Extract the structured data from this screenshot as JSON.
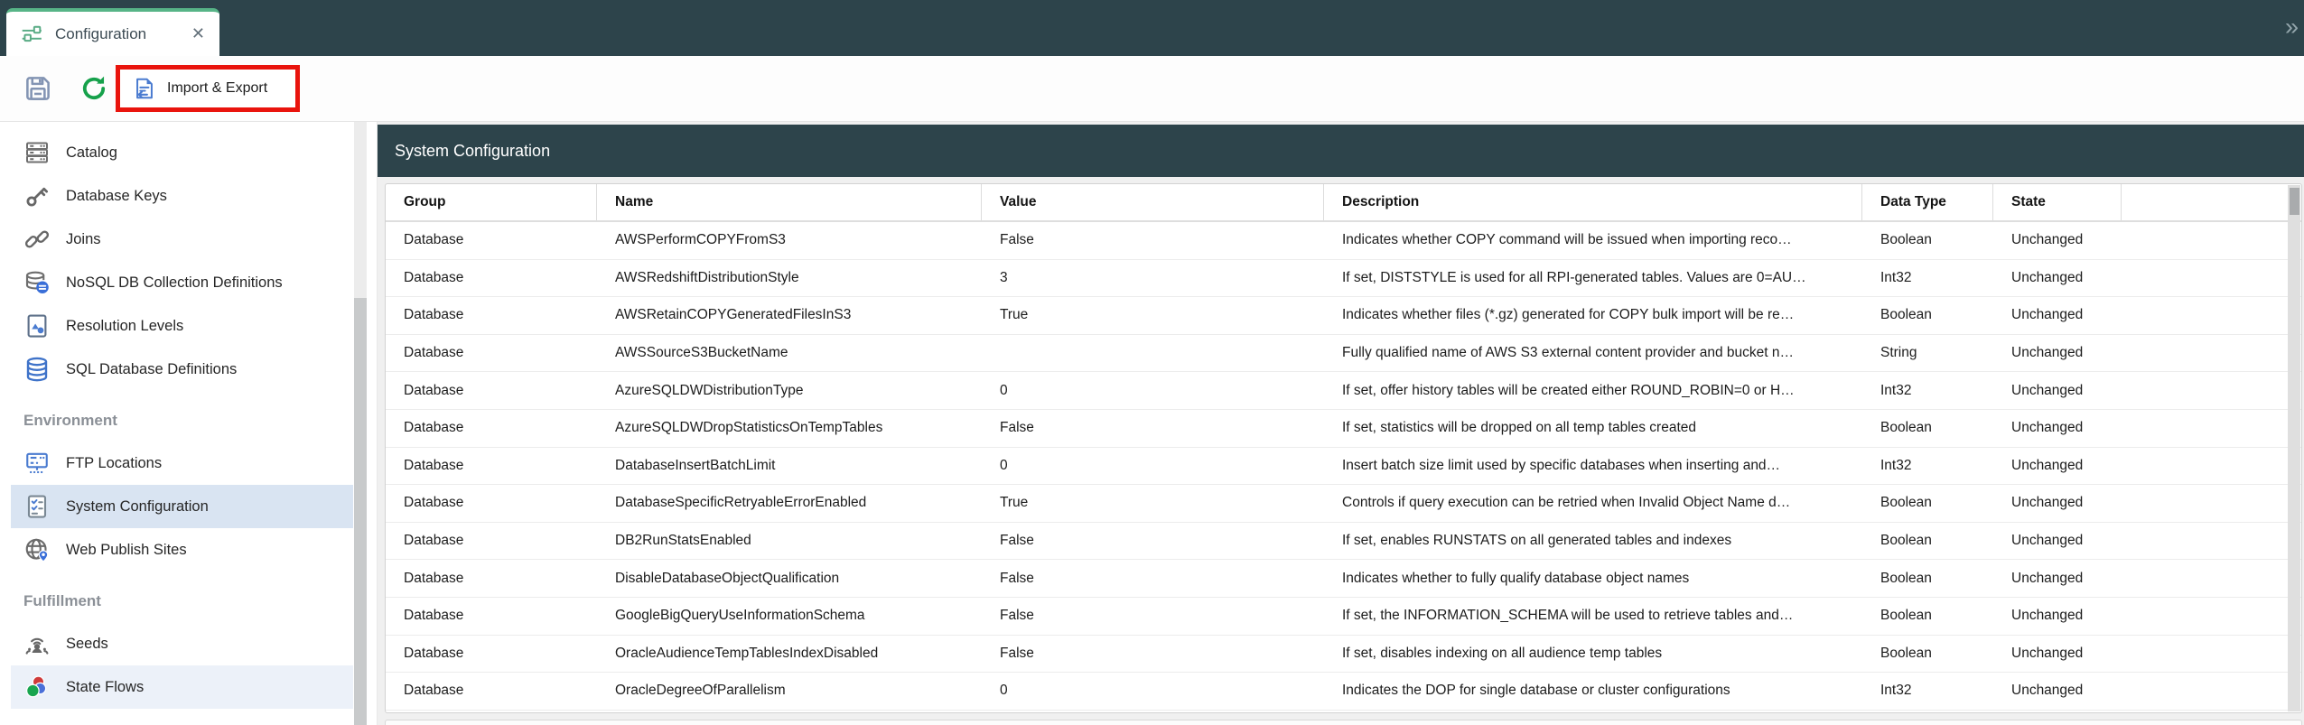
{
  "tab_bar": {
    "tab": {
      "icon": "sliders-icon",
      "label": "Configuration",
      "close_glyph": "✕"
    },
    "overflow_glyph": "»"
  },
  "toolbar": {
    "import_export": {
      "icon": "import-export-icon",
      "label": "Import & Export"
    }
  },
  "sidebar": {
    "sections": [
      {
        "header": null,
        "items": [
          {
            "label": "Catalog",
            "icon": "catalog-icon"
          },
          {
            "label": "Database Keys",
            "icon": "database-keys-icon"
          },
          {
            "label": "Joins",
            "icon": "joins-icon"
          },
          {
            "label": "NoSQL DB Collection Definitions",
            "icon": "nosql-db-icon"
          },
          {
            "label": "Resolution Levels",
            "icon": "resolution-levels-icon"
          },
          {
            "label": "SQL Database Definitions",
            "icon": "sql-database-icon"
          }
        ]
      },
      {
        "header": "Environment",
        "items": [
          {
            "label": "FTP Locations",
            "icon": "ftp-locations-icon"
          },
          {
            "label": "System Configuration",
            "icon": "system-configuration-icon",
            "selected": true
          },
          {
            "label": "Web Publish Sites",
            "icon": "web-publish-icon"
          }
        ]
      },
      {
        "header": "Fulfillment",
        "items": [
          {
            "label": "Seeds",
            "icon": "seeds-icon"
          },
          {
            "label": "State Flows",
            "icon": "state-flows-icon",
            "highlighted": true
          }
        ]
      }
    ]
  },
  "main": {
    "title": "System Configuration",
    "table": {
      "columns": [
        "Group",
        "Name",
        "Value",
        "Description",
        "Data Type",
        "State",
        ""
      ],
      "rows": [
        {
          "group": "Database",
          "name": "AWSPerformCOPYFromS3",
          "value": "False",
          "description": "Indicates whether COPY command will be issued when importing reco…",
          "data_type": "Boolean",
          "state": "Unchanged"
        },
        {
          "group": "Database",
          "name": "AWSRedshiftDistributionStyle",
          "value": "3",
          "description": "If set, DISTSTYLE is used for all RPI-generated tables. Values are 0=AU…",
          "data_type": "Int32",
          "state": "Unchanged"
        },
        {
          "group": "Database",
          "name": "AWSRetainCOPYGeneratedFilesInS3",
          "value": "True",
          "description": "Indicates whether files (*.gz) generated for COPY bulk import will be re…",
          "data_type": "Boolean",
          "state": "Unchanged"
        },
        {
          "group": "Database",
          "name": "AWSSourceS3BucketName",
          "value": "",
          "description": "Fully qualified name of AWS S3 external content provider and bucket n…",
          "data_type": "String",
          "state": "Unchanged"
        },
        {
          "group": "Database",
          "name": "AzureSQLDWDistributionType",
          "value": "0",
          "description": "If set, offer history tables will be created either ROUND_ROBIN=0 or H…",
          "data_type": "Int32",
          "state": "Unchanged"
        },
        {
          "group": "Database",
          "name": "AzureSQLDWDropStatisticsOnTempTables",
          "value": "False",
          "description": "If set, statistics will be dropped on all temp tables created",
          "data_type": "Boolean",
          "state": "Unchanged"
        },
        {
          "group": "Database",
          "name": "DatabaseInsertBatchLimit",
          "value": "0",
          "description": "Insert batch size limit used by specific databases when inserting and…",
          "data_type": "Int32",
          "state": "Unchanged"
        },
        {
          "group": "Database",
          "name": "DatabaseSpecificRetryableErrorEnabled",
          "value": "True",
          "description": "Controls if query execution can be retried when Invalid Object Name d…",
          "data_type": "Boolean",
          "state": "Unchanged"
        },
        {
          "group": "Database",
          "name": "DB2RunStatsEnabled",
          "value": "False",
          "description": "If set, enables RUNSTATS on all generated tables and indexes",
          "data_type": "Boolean",
          "state": "Unchanged"
        },
        {
          "group": "Database",
          "name": "DisableDatabaseObjectQualification",
          "value": "False",
          "description": "Indicates whether to fully qualify database object names",
          "data_type": "Boolean",
          "state": "Unchanged"
        },
        {
          "group": "Database",
          "name": "GoogleBigQueryUseInformationSchema",
          "value": "False",
          "description": "If set, the INFORMATION_SCHEMA will be used to retrieve tables and…",
          "data_type": "Boolean",
          "state": "Unchanged"
        },
        {
          "group": "Database",
          "name": "OracleAudienceTempTablesIndexDisabled",
          "value": "False",
          "description": "If set, disables indexing on all audience temp tables",
          "data_type": "Boolean",
          "state": "Unchanged"
        },
        {
          "group": "Database",
          "name": "OracleDegreeOfParallelism",
          "value": "0",
          "description": "Indicates the DOP for single database or cluster configurations",
          "data_type": "Int32",
          "state": "Unchanged"
        }
      ]
    }
  },
  "colors": {
    "header_bar": "#2d444b",
    "tab_accent_green": "#57b487",
    "refresh_green": "#16a14b",
    "icon_blue": "#4a7bd0",
    "selected_item_bg": "#d9e4f2",
    "annotation_red": "#e9140d"
  }
}
